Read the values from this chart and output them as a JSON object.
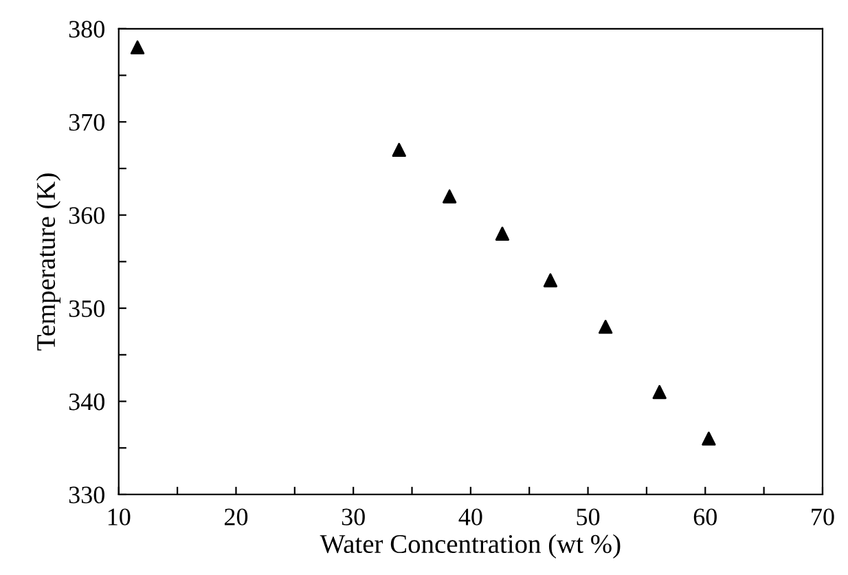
{
  "chart_data": {
    "type": "scatter",
    "xlabel": "Water Concentration (wt %)",
    "ylabel": "Temperature (K)",
    "x": [
      11.6,
      33.9,
      38.2,
      42.7,
      46.8,
      51.5,
      56.1,
      60.3
    ],
    "series": [
      {
        "color": "#000000",
        "values": [
          378,
          367,
          362,
          358,
          353,
          348,
          341,
          336
        ]
      }
    ],
    "marker": "triangle",
    "grid": false,
    "xlim": [
      10,
      70
    ],
    "ylim": [
      330,
      380
    ],
    "xticks": [
      10,
      {
        "value": 15,
        "label": null
      },
      20,
      {
        "value": 25,
        "label": null
      },
      30,
      {
        "value": 35,
        "label": null
      },
      40,
      {
        "value": 45,
        "label": null
      },
      50,
      {
        "value": 55,
        "label": null
      },
      60,
      {
        "value": 65,
        "label": null
      },
      70
    ],
    "yticks": [
      330,
      {
        "value": 335,
        "label": null
      },
      340,
      {
        "value": 345,
        "label": null
      },
      350,
      {
        "value": 355,
        "label": null
      },
      360,
      {
        "value": 365,
        "label": null
      },
      370,
      {
        "value": 375,
        "label": null
      },
      380
    ]
  }
}
